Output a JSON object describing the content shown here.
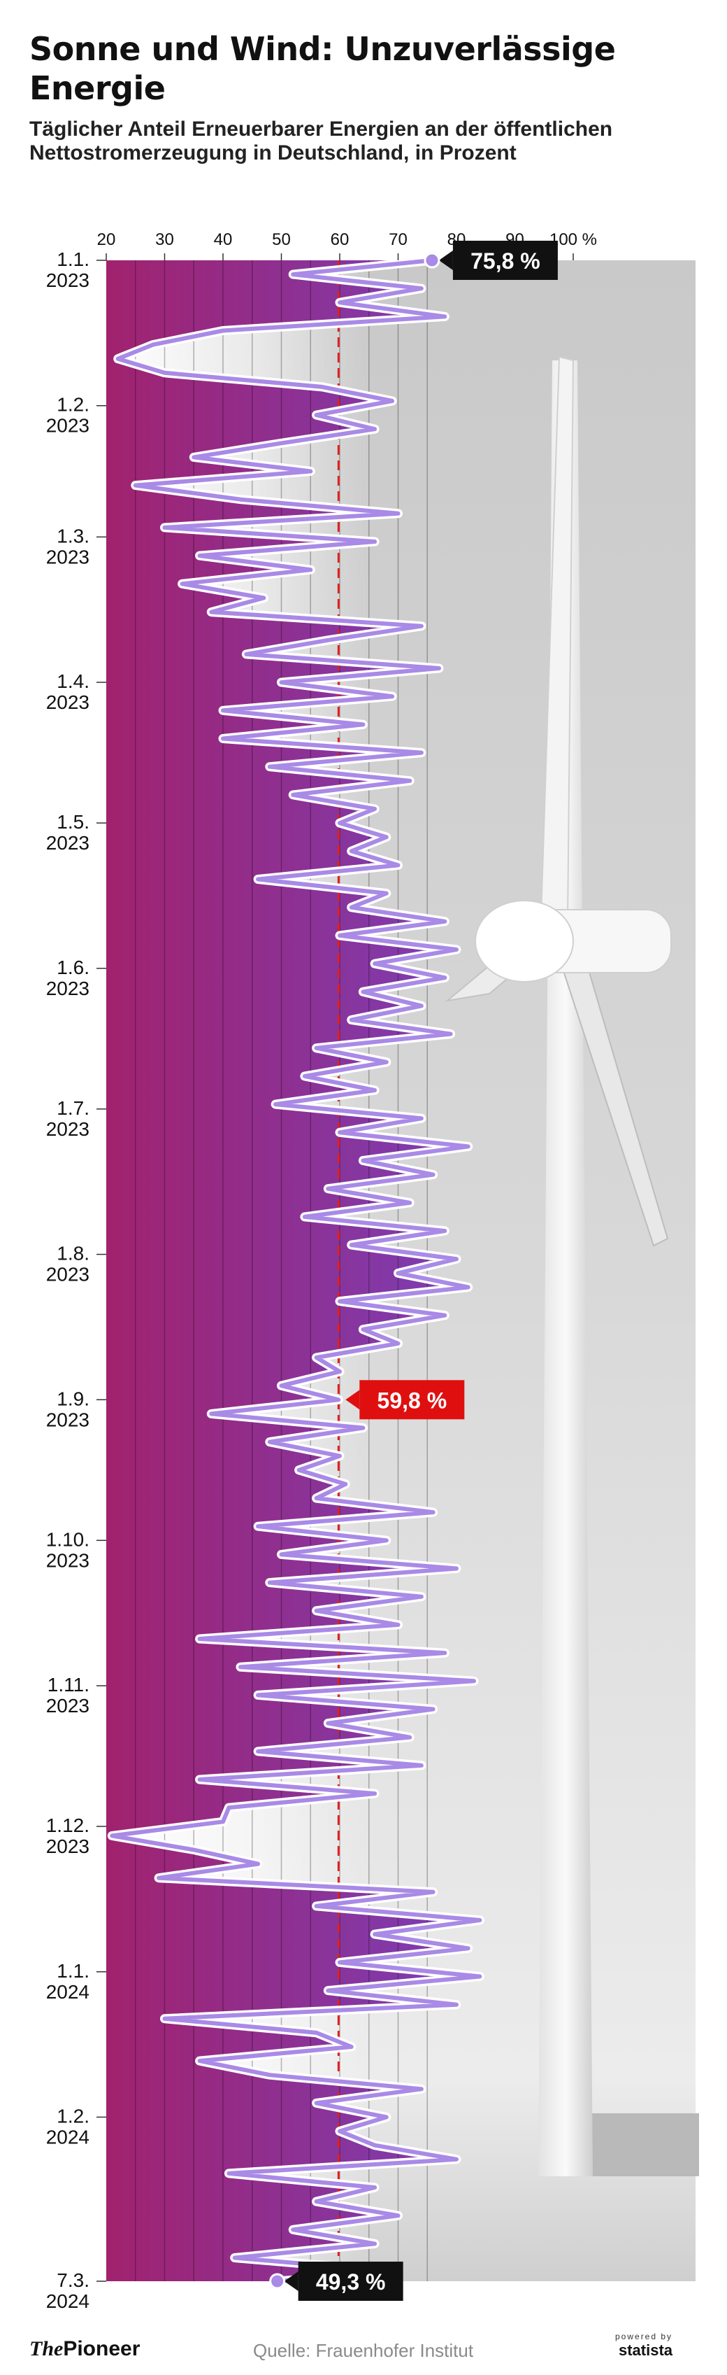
{
  "title": "Sonne und Wind: Unzuverlässige Energie",
  "subtitle": "Täglicher Anteil Erneuerbarer Energien an der öffentlichen Nettostromerzeugung in Deutschland, in Prozent",
  "footer": {
    "brand_prefix": "The",
    "brand_main": "Pioneer",
    "source": "Quelle: Frauenhofer Institut",
    "powered_by": "powered by",
    "statista": "statista"
  },
  "colors": {
    "band_left": "#a1226e",
    "band_right": "#7a3fb8",
    "line": "#a98ae6",
    "dashed": "#e02020",
    "callout_dark": "#111111",
    "callout_red": "#e00f0f"
  },
  "chart_data": {
    "type": "line",
    "orientation": "vertical-time",
    "x_axis": {
      "ticks": [
        20,
        30,
        40,
        50,
        60,
        70,
        80,
        90,
        100
      ],
      "tick_labels": [
        "20",
        "30",
        "40",
        "50",
        "60",
        "70",
        "80",
        "90",
        "100 %"
      ],
      "range": [
        20,
        100
      ]
    },
    "y_axis": {
      "labels": [
        {
          "date": "2023-01-01",
          "line1": "1.1.",
          "line2": "2023"
        },
        {
          "date": "2023-02-01",
          "line1": "1.2.",
          "line2": "2023"
        },
        {
          "date": "2023-03-01",
          "line1": "1.3.",
          "line2": "2023"
        },
        {
          "date": "2023-04-01",
          "line1": "1.4.",
          "line2": "2023"
        },
        {
          "date": "2023-05-01",
          "line1": "1.5.",
          "line2": "2023"
        },
        {
          "date": "2023-06-01",
          "line1": "1.6.",
          "line2": "2023"
        },
        {
          "date": "2023-07-01",
          "line1": "1.7.",
          "line2": "2023"
        },
        {
          "date": "2023-08-01",
          "line1": "1.8.",
          "line2": "2023"
        },
        {
          "date": "2023-09-01",
          "line1": "1.9.",
          "line2": "2023"
        },
        {
          "date": "2023-10-01",
          "line1": "1.10.",
          "line2": "2023"
        },
        {
          "date": "2023-11-01",
          "line1": "1.11.",
          "line2": "2023"
        },
        {
          "date": "2023-12-01",
          "line1": "1.12.",
          "line2": "2023"
        },
        {
          "date": "2024-01-01",
          "line1": "1.1.",
          "line2": "2024"
        },
        {
          "date": "2024-02-01",
          "line1": "1.2.",
          "line2": "2024"
        },
        {
          "date": "2024-03-07",
          "line1": "7.3.",
          "line2": "2024"
        }
      ],
      "range": [
        "2023-01-01",
        "2024-03-07"
      ]
    },
    "reference_line": {
      "value": 59.8,
      "style": "dashed"
    },
    "annotations": [
      {
        "date": "2023-01-01",
        "value": 75.8,
        "label": "75,8 %",
        "style": "dark"
      },
      {
        "date": "2023-09-01",
        "value": 59.8,
        "label": "59,8 %",
        "style": "red"
      },
      {
        "date": "2024-03-07",
        "value": 49.3,
        "label": "49,3 %",
        "style": "dark"
      }
    ],
    "series": [
      {
        "values": [
          {
            "date": "2023-01-01",
            "value": 75.8
          },
          {
            "date": "2023-01-04",
            "value": 52
          },
          {
            "date": "2023-01-07",
            "value": 74
          },
          {
            "date": "2023-01-10",
            "value": 60
          },
          {
            "date": "2023-01-13",
            "value": 78
          },
          {
            "date": "2023-01-16",
            "value": 40
          },
          {
            "date": "2023-01-19",
            "value": 28
          },
          {
            "date": "2023-01-22",
            "value": 22
          },
          {
            "date": "2023-01-25",
            "value": 30
          },
          {
            "date": "2023-01-28",
            "value": 57
          },
          {
            "date": "2023-01-31",
            "value": 69
          },
          {
            "date": "2023-02-03",
            "value": 56
          },
          {
            "date": "2023-02-06",
            "value": 66
          },
          {
            "date": "2023-02-09",
            "value": 50
          },
          {
            "date": "2023-02-12",
            "value": 35
          },
          {
            "date": "2023-02-15",
            "value": 55
          },
          {
            "date": "2023-02-18",
            "value": 25
          },
          {
            "date": "2023-02-21",
            "value": 43
          },
          {
            "date": "2023-02-24",
            "value": 70
          },
          {
            "date": "2023-02-27",
            "value": 30
          },
          {
            "date": "2023-03-02",
            "value": 66
          },
          {
            "date": "2023-03-05",
            "value": 36
          },
          {
            "date": "2023-03-08",
            "value": 55
          },
          {
            "date": "2023-03-11",
            "value": 33
          },
          {
            "date": "2023-03-14",
            "value": 47
          },
          {
            "date": "2023-03-17",
            "value": 38
          },
          {
            "date": "2023-03-20",
            "value": 74
          },
          {
            "date": "2023-03-23",
            "value": 58
          },
          {
            "date": "2023-03-26",
            "value": 44
          },
          {
            "date": "2023-03-29",
            "value": 77
          },
          {
            "date": "2023-04-01",
            "value": 50
          },
          {
            "date": "2023-04-04",
            "value": 69
          },
          {
            "date": "2023-04-07",
            "value": 40
          },
          {
            "date": "2023-04-10",
            "value": 64
          },
          {
            "date": "2023-04-13",
            "value": 40
          },
          {
            "date": "2023-04-16",
            "value": 74
          },
          {
            "date": "2023-04-19",
            "value": 48
          },
          {
            "date": "2023-04-22",
            "value": 72
          },
          {
            "date": "2023-04-25",
            "value": 52
          },
          {
            "date": "2023-04-28",
            "value": 66
          },
          {
            "date": "2023-05-01",
            "value": 60
          },
          {
            "date": "2023-05-04",
            "value": 68
          },
          {
            "date": "2023-05-07",
            "value": 62
          },
          {
            "date": "2023-05-10",
            "value": 70
          },
          {
            "date": "2023-05-13",
            "value": 46
          },
          {
            "date": "2023-05-16",
            "value": 68
          },
          {
            "date": "2023-05-19",
            "value": 62
          },
          {
            "date": "2023-05-22",
            "value": 78
          },
          {
            "date": "2023-05-25",
            "value": 60
          },
          {
            "date": "2023-05-28",
            "value": 80
          },
          {
            "date": "2023-05-31",
            "value": 66
          },
          {
            "date": "2023-06-03",
            "value": 78
          },
          {
            "date": "2023-06-06",
            "value": 64
          },
          {
            "date": "2023-06-09",
            "value": 74
          },
          {
            "date": "2023-06-12",
            "value": 62
          },
          {
            "date": "2023-06-15",
            "value": 79
          },
          {
            "date": "2023-06-18",
            "value": 56
          },
          {
            "date": "2023-06-21",
            "value": 68
          },
          {
            "date": "2023-06-24",
            "value": 54
          },
          {
            "date": "2023-06-27",
            "value": 66
          },
          {
            "date": "2023-06-30",
            "value": 49
          },
          {
            "date": "2023-07-03",
            "value": 74
          },
          {
            "date": "2023-07-06",
            "value": 60
          },
          {
            "date": "2023-07-09",
            "value": 82
          },
          {
            "date": "2023-07-12",
            "value": 64
          },
          {
            "date": "2023-07-15",
            "value": 76
          },
          {
            "date": "2023-07-18",
            "value": 58
          },
          {
            "date": "2023-07-21",
            "value": 72
          },
          {
            "date": "2023-07-24",
            "value": 54
          },
          {
            "date": "2023-07-27",
            "value": 78
          },
          {
            "date": "2023-07-30",
            "value": 62
          },
          {
            "date": "2023-08-02",
            "value": 80
          },
          {
            "date": "2023-08-05",
            "value": 70
          },
          {
            "date": "2023-08-08",
            "value": 82
          },
          {
            "date": "2023-08-11",
            "value": 60
          },
          {
            "date": "2023-08-14",
            "value": 78
          },
          {
            "date": "2023-08-17",
            "value": 64
          },
          {
            "date": "2023-08-20",
            "value": 70
          },
          {
            "date": "2023-08-23",
            "value": 56
          },
          {
            "date": "2023-08-26",
            "value": 60
          },
          {
            "date": "2023-08-29",
            "value": 50
          },
          {
            "date": "2023-09-01",
            "value": 59.8
          },
          {
            "date": "2023-09-04",
            "value": 38
          },
          {
            "date": "2023-09-07",
            "value": 64
          },
          {
            "date": "2023-09-10",
            "value": 48
          },
          {
            "date": "2023-09-13",
            "value": 60
          },
          {
            "date": "2023-09-16",
            "value": 53
          },
          {
            "date": "2023-09-19",
            "value": 61
          },
          {
            "date": "2023-09-22",
            "value": 56
          },
          {
            "date": "2023-09-25",
            "value": 76
          },
          {
            "date": "2023-09-28",
            "value": 46
          },
          {
            "date": "2023-10-01",
            "value": 68
          },
          {
            "date": "2023-10-04",
            "value": 50
          },
          {
            "date": "2023-10-07",
            "value": 80
          },
          {
            "date": "2023-10-10",
            "value": 48
          },
          {
            "date": "2023-10-13",
            "value": 74
          },
          {
            "date": "2023-10-16",
            "value": 56
          },
          {
            "date": "2023-10-19",
            "value": 70
          },
          {
            "date": "2023-10-22",
            "value": 36
          },
          {
            "date": "2023-10-25",
            "value": 78
          },
          {
            "date": "2023-10-28",
            "value": 43
          },
          {
            "date": "2023-10-31",
            "value": 83
          },
          {
            "date": "2023-11-03",
            "value": 46
          },
          {
            "date": "2023-11-06",
            "value": 76
          },
          {
            "date": "2023-11-09",
            "value": 58
          },
          {
            "date": "2023-11-12",
            "value": 72
          },
          {
            "date": "2023-11-15",
            "value": 46
          },
          {
            "date": "2023-11-18",
            "value": 74
          },
          {
            "date": "2023-11-21",
            "value": 36
          },
          {
            "date": "2023-11-24",
            "value": 66
          },
          {
            "date": "2023-11-27",
            "value": 41
          },
          {
            "date": "2023-11-30",
            "value": 40
          },
          {
            "date": "2023-12-03",
            "value": 21
          },
          {
            "date": "2023-12-06",
            "value": 35
          },
          {
            "date": "2023-12-09",
            "value": 46
          },
          {
            "date": "2023-12-12",
            "value": 29
          },
          {
            "date": "2023-12-15",
            "value": 76
          },
          {
            "date": "2023-12-18",
            "value": 56
          },
          {
            "date": "2023-12-21",
            "value": 84
          },
          {
            "date": "2023-12-24",
            "value": 66
          },
          {
            "date": "2023-12-27",
            "value": 82
          },
          {
            "date": "2023-12-30",
            "value": 60
          },
          {
            "date": "2024-01-02",
            "value": 84
          },
          {
            "date": "2024-01-05",
            "value": 58
          },
          {
            "date": "2024-01-08",
            "value": 80
          },
          {
            "date": "2024-01-11",
            "value": 30
          },
          {
            "date": "2024-01-14",
            "value": 56
          },
          {
            "date": "2024-01-17",
            "value": 62
          },
          {
            "date": "2024-01-20",
            "value": 36
          },
          {
            "date": "2024-01-23",
            "value": 48
          },
          {
            "date": "2024-01-26",
            "value": 74
          },
          {
            "date": "2024-01-29",
            "value": 56
          },
          {
            "date": "2024-02-01",
            "value": 68
          },
          {
            "date": "2024-02-04",
            "value": 60
          },
          {
            "date": "2024-02-07",
            "value": 66
          },
          {
            "date": "2024-02-10",
            "value": 80
          },
          {
            "date": "2024-02-13",
            "value": 41
          },
          {
            "date": "2024-02-16",
            "value": 66
          },
          {
            "date": "2024-02-19",
            "value": 56
          },
          {
            "date": "2024-02-22",
            "value": 70
          },
          {
            "date": "2024-02-25",
            "value": 52
          },
          {
            "date": "2024-02-28",
            "value": 66
          },
          {
            "date": "2024-03-02",
            "value": 42
          },
          {
            "date": "2024-03-05",
            "value": 70
          },
          {
            "date": "2024-03-07",
            "value": 49.3
          }
        ]
      }
    ]
  }
}
